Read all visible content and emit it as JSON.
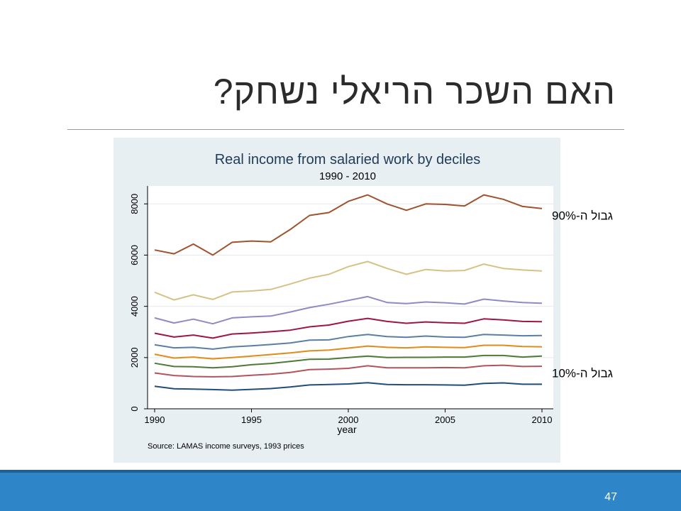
{
  "slide": {
    "title": "האם השכר הריאלי נשחק?",
    "page_number": "47"
  },
  "chart_data": {
    "type": "line",
    "title": "Real income from salaried work by deciles",
    "subtitle": "1990 - 2010",
    "xlabel": "year",
    "ylabel": "",
    "source_note": "Source: LAMAS income surveys, 1993 prices",
    "xlim": [
      1990,
      2010
    ],
    "ylim": [
      0,
      8700
    ],
    "x_ticks": [
      1990,
      1995,
      2000,
      2005,
      2010
    ],
    "y_ticks": [
      0,
      2000,
      4000,
      6000,
      8000
    ],
    "grid": true,
    "background": "#e8eff3",
    "x": [
      1990,
      1991,
      1992,
      1993,
      1994,
      1995,
      1996,
      1997,
      1998,
      1999,
      2000,
      2001,
      2002,
      2003,
      2004,
      2005,
      2006,
      2007,
      2008,
      2009,
      2010
    ],
    "series": [
      {
        "color": "#1f4e79",
        "values": [
          880,
          780,
          770,
          750,
          730,
          760,
          790,
          850,
          930,
          950,
          970,
          1020,
          950,
          940,
          940,
          930,
          920,
          990,
          1010,
          960,
          960
        ]
      },
      {
        "color": "#b5525c",
        "values": [
          1400,
          1300,
          1260,
          1250,
          1260,
          1310,
          1350,
          1420,
          1530,
          1550,
          1580,
          1680,
          1600,
          1600,
          1600,
          1610,
          1600,
          1680,
          1700,
          1650,
          1660
        ]
      },
      {
        "color": "#4d7a35",
        "values": [
          1780,
          1650,
          1640,
          1600,
          1640,
          1720,
          1770,
          1850,
          1930,
          1940,
          2000,
          2060,
          2000,
          2010,
          2010,
          2020,
          2020,
          2080,
          2080,
          2020,
          2060
        ]
      },
      {
        "color": "#e08b1a",
        "values": [
          2130,
          1980,
          2020,
          1950,
          2000,
          2060,
          2120,
          2180,
          2260,
          2290,
          2370,
          2450,
          2400,
          2380,
          2420,
          2400,
          2390,
          2480,
          2480,
          2430,
          2420
        ]
      },
      {
        "color": "#5a7fa6",
        "values": [
          2500,
          2380,
          2400,
          2330,
          2420,
          2460,
          2510,
          2570,
          2680,
          2690,
          2820,
          2900,
          2820,
          2790,
          2840,
          2800,
          2790,
          2900,
          2880,
          2850,
          2860
        ]
      },
      {
        "color": "#a0144a",
        "values": [
          2950,
          2800,
          2880,
          2760,
          2920,
          2960,
          3010,
          3070,
          3200,
          3270,
          3420,
          3530,
          3410,
          3340,
          3390,
          3360,
          3340,
          3510,
          3470,
          3410,
          3400
        ]
      },
      {
        "color": "#8e8ac4",
        "values": [
          3550,
          3350,
          3500,
          3320,
          3550,
          3590,
          3620,
          3780,
          3950,
          4080,
          4230,
          4380,
          4150,
          4110,
          4170,
          4140,
          4090,
          4280,
          4210,
          4150,
          4120
        ]
      },
      {
        "color": "#d4c384",
        "values": [
          4550,
          4250,
          4450,
          4270,
          4560,
          4600,
          4660,
          4870,
          5100,
          5250,
          5550,
          5750,
          5480,
          5250,
          5440,
          5380,
          5400,
          5650,
          5480,
          5420,
          5380
        ]
      },
      {
        "color": "#a0522d",
        "values": [
          6200,
          6050,
          6430,
          6000,
          6500,
          6550,
          6520,
          7000,
          7550,
          7660,
          8100,
          8350,
          8000,
          7750,
          8000,
          7980,
          7920,
          8350,
          8180,
          7900,
          7820
        ]
      }
    ],
    "annotations": [
      {
        "text": "גבול ה-90%",
        "x": 2010,
        "y": 7380
      },
      {
        "text": "גבול ה-10%",
        "x": 2010,
        "y": 1230
      }
    ]
  }
}
